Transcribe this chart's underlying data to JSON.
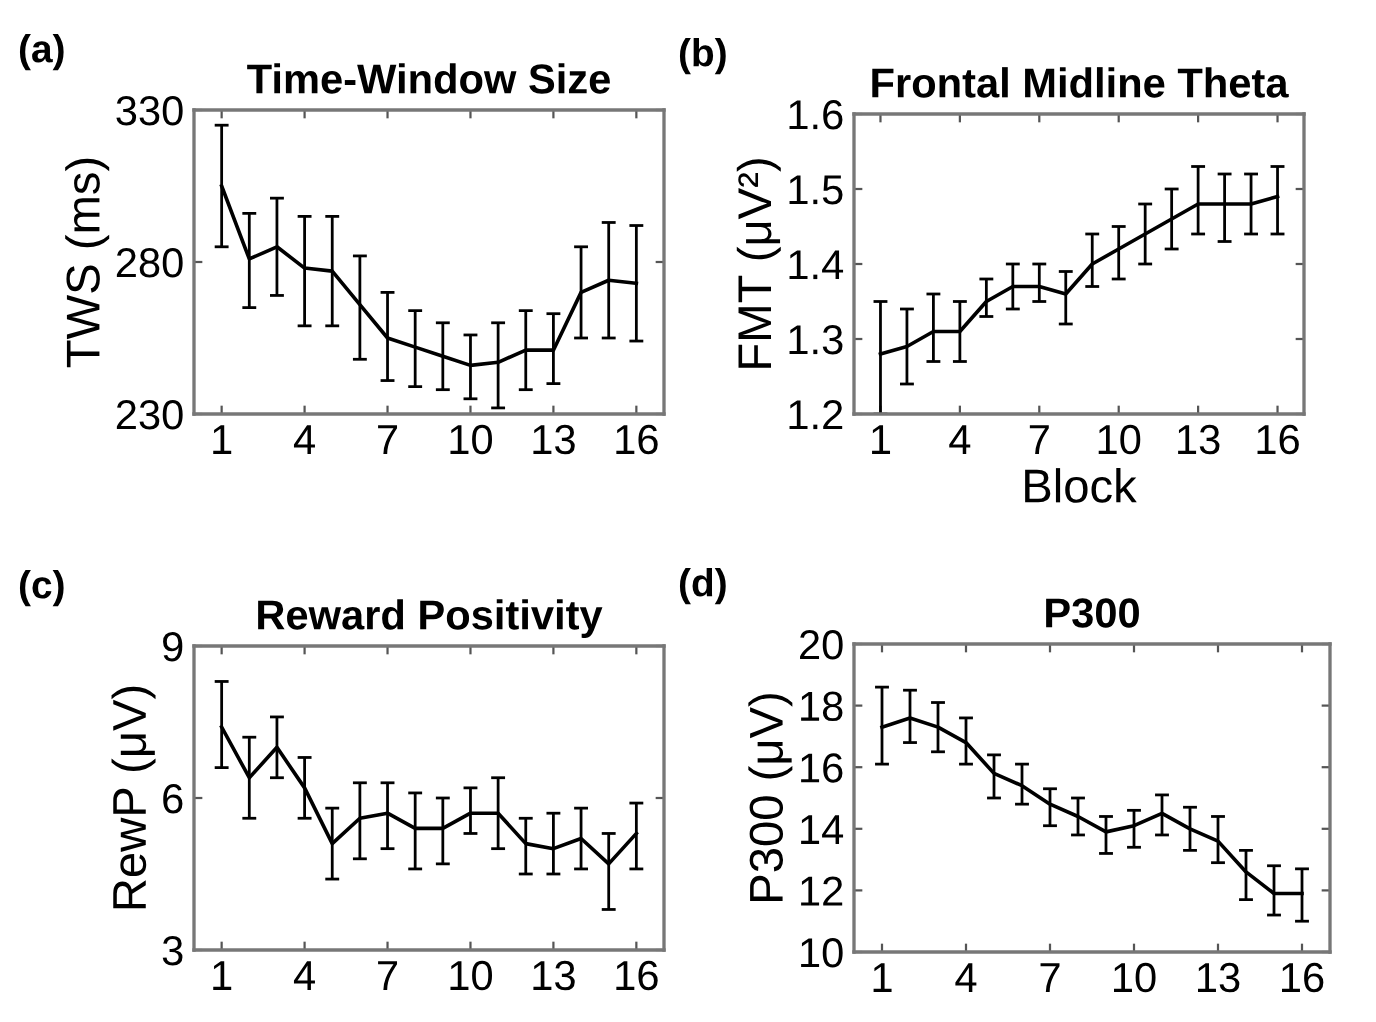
{
  "chart_data": [
    {
      "type": "line",
      "title": "Time-Window Size",
      "ylabel": "TWS (ms)",
      "annotations": [
        "(a)"
      ],
      "x": [
        1,
        2,
        3,
        4,
        5,
        6,
        7,
        8,
        9,
        10,
        11,
        12,
        13,
        14,
        15,
        16
      ],
      "xlim": [
        0,
        17
      ],
      "xticks": [
        1,
        4,
        7,
        10,
        13,
        16
      ],
      "ylim": [
        230,
        330
      ],
      "yticks": [
        230,
        280,
        330
      ],
      "grid": false,
      "legend": false,
      "series": [
        {
          "color": "#000000",
          "values": [
            305,
            281,
            285,
            278,
            277,
            266,
            255,
            252,
            249,
            246,
            247,
            251,
            251,
            270,
            274,
            273
          ],
          "errors": [
            [
              285,
              325
            ],
            [
              265,
              296
            ],
            [
              269,
              301
            ],
            [
              259,
              295
            ],
            [
              259,
              295
            ],
            [
              248,
              282
            ],
            [
              241,
              270
            ],
            [
              239,
              264
            ],
            [
              238,
              260
            ],
            [
              235,
              256
            ],
            [
              232,
              260
            ],
            [
              238,
              264
            ],
            [
              240,
              263
            ],
            [
              255,
              285
            ],
            [
              255,
              293
            ],
            [
              254,
              292
            ]
          ]
        }
      ]
    },
    {
      "type": "line",
      "title": "Frontal Midline Theta",
      "xlabel": "Block",
      "ylabel": "FMT (μV²)",
      "annotations": [
        "(b)"
      ],
      "x": [
        1,
        2,
        3,
        4,
        5,
        6,
        7,
        8,
        9,
        10,
        11,
        12,
        13,
        14,
        15,
        16
      ],
      "xlim": [
        0,
        17
      ],
      "xticks": [
        1,
        4,
        7,
        10,
        13,
        16
      ],
      "ylim": [
        1.2,
        1.6
      ],
      "yticks": [
        1.2,
        1.3,
        1.4,
        1.5,
        1.6
      ],
      "grid": false,
      "legend": false,
      "series": [
        {
          "color": "#000000",
          "values": [
            1.28,
            1.29,
            1.31,
            1.31,
            1.35,
            1.37,
            1.37,
            1.36,
            1.4,
            1.42,
            1.44,
            1.46,
            1.48,
            1.48,
            1.48,
            1.49
          ],
          "errors": [
            [
              1.2,
              1.35
            ],
            [
              1.24,
              1.34
            ],
            [
              1.27,
              1.36
            ],
            [
              1.27,
              1.35
            ],
            [
              1.33,
              1.38
            ],
            [
              1.34,
              1.4
            ],
            [
              1.35,
              1.4
            ],
            [
              1.32,
              1.39
            ],
            [
              1.37,
              1.44
            ],
            [
              1.38,
              1.45
            ],
            [
              1.4,
              1.48
            ],
            [
              1.42,
              1.5
            ],
            [
              1.44,
              1.53
            ],
            [
              1.43,
              1.52
            ],
            [
              1.44,
              1.52
            ],
            [
              1.44,
              1.53
            ]
          ]
        }
      ]
    },
    {
      "type": "line",
      "title": "Reward Positivity",
      "ylabel": "RewP (μV)",
      "annotations": [
        "(c)"
      ],
      "x": [
        1,
        2,
        3,
        4,
        5,
        6,
        7,
        8,
        9,
        10,
        11,
        12,
        13,
        14,
        15,
        16
      ],
      "xlim": [
        0,
        17
      ],
      "xticks": [
        1,
        4,
        7,
        10,
        13,
        16
      ],
      "ylim": [
        3,
        9
      ],
      "yticks": [
        3,
        6,
        9
      ],
      "grid": false,
      "legend": false,
      "series": [
        {
          "color": "#000000",
          "values": [
            7.4,
            6.4,
            7.0,
            6.2,
            5.1,
            5.6,
            5.7,
            5.4,
            5.4,
            5.7,
            5.7,
            5.1,
            5.0,
            5.2,
            4.7,
            5.3
          ],
          "errors": [
            [
              6.6,
              8.3
            ],
            [
              5.6,
              7.2
            ],
            [
              6.4,
              7.6
            ],
            [
              5.6,
              6.8
            ],
            [
              4.4,
              5.8
            ],
            [
              4.8,
              6.3
            ],
            [
              5.0,
              6.3
            ],
            [
              4.6,
              6.1
            ],
            [
              4.7,
              6.0
            ],
            [
              5.3,
              6.2
            ],
            [
              5.0,
              6.4
            ],
            [
              4.5,
              5.6
            ],
            [
              4.5,
              5.7
            ],
            [
              4.6,
              5.8
            ],
            [
              3.8,
              5.3
            ],
            [
              4.6,
              5.9
            ]
          ]
        }
      ]
    },
    {
      "type": "line",
      "title": "P300",
      "ylabel": "P300 (μV)",
      "annotations": [
        "(d)"
      ],
      "x": [
        1,
        2,
        3,
        4,
        5,
        6,
        7,
        8,
        9,
        10,
        11,
        12,
        13,
        14,
        15,
        16
      ],
      "xlim": [
        0,
        17
      ],
      "xticks": [
        1,
        4,
        7,
        10,
        13,
        16
      ],
      "ylim": [
        10,
        20
      ],
      "yticks": [
        10,
        12,
        14,
        16,
        18,
        20
      ],
      "grid": false,
      "legend": false,
      "series": [
        {
          "color": "#000000",
          "values": [
            17.3,
            17.6,
            17.3,
            16.8,
            15.8,
            15.4,
            14.8,
            14.4,
            13.9,
            14.1,
            14.5,
            14.0,
            13.6,
            12.6,
            11.9,
            11.9
          ],
          "errors": [
            [
              16.1,
              18.6
            ],
            [
              16.8,
              18.5
            ],
            [
              16.5,
              18.1
            ],
            [
              16.1,
              17.6
            ],
            [
              15.0,
              16.4
            ],
            [
              14.8,
              16.1
            ],
            [
              14.1,
              15.3
            ],
            [
              13.8,
              15.0
            ],
            [
              13.2,
              14.4
            ],
            [
              13.4,
              14.6
            ],
            [
              13.8,
              15.1
            ],
            [
              13.3,
              14.7
            ],
            [
              12.9,
              14.4
            ],
            [
              11.7,
              13.3
            ],
            [
              11.2,
              12.8
            ],
            [
              11.0,
              12.7
            ]
          ]
        }
      ]
    }
  ]
}
